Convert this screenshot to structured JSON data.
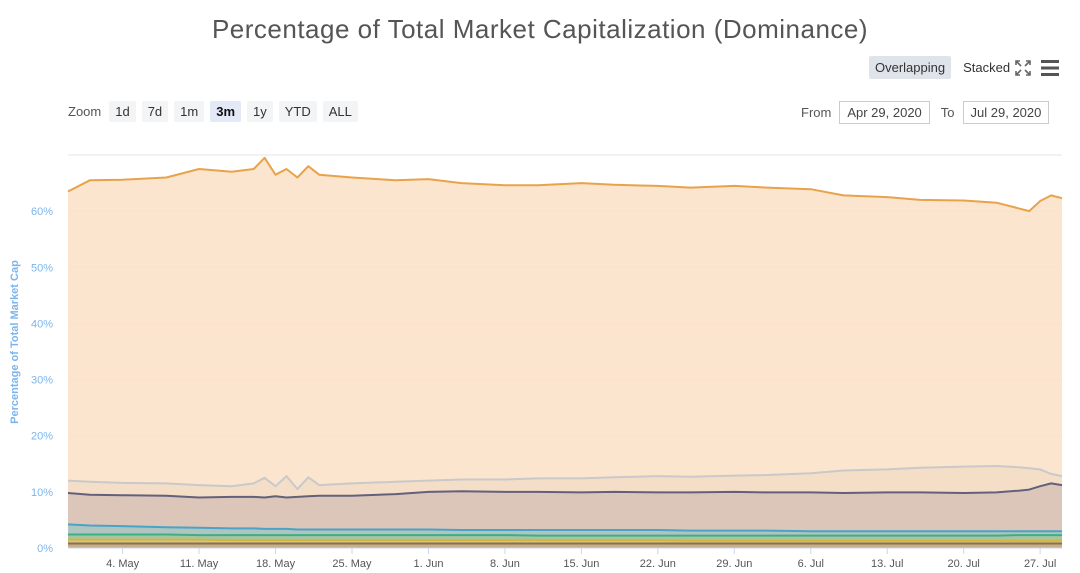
{
  "page": {
    "title": "Percentage of Total Market Capitalization (Dominance)"
  },
  "toolbar": {
    "overlapping_label": "Overlapping",
    "stacked_label": "Stacked",
    "active_view": "overlapping",
    "fullscreen_icon": "fullscreen-icon",
    "menu_icon": "hamburger-menu-icon"
  },
  "zoom": {
    "label": "Zoom",
    "buttons": [
      "1d",
      "7d",
      "1m",
      "3m",
      "1y",
      "YTD",
      "ALL"
    ],
    "active": "3m"
  },
  "range": {
    "from_label": "From",
    "from_value": "Apr 29, 2020",
    "to_label": "To",
    "to_value": "Jul 29, 2020"
  },
  "chart_data": {
    "type": "area",
    "title": "Percentage of Total Market Capitalization (Dominance)",
    "ylabel": "Percentage of Total Market Cap",
    "xlabel": "",
    "ylim": [
      0,
      70
    ],
    "yticks": [
      "0%",
      "10%",
      "20%",
      "30%",
      "40%",
      "50%",
      "60%"
    ],
    "x_tick_labels": [
      "4. May",
      "11. May",
      "18. May",
      "25. May",
      "1. Jun",
      "8. Jun",
      "15. Jun",
      "22. Jun",
      "29. Jun",
      "6. Jul",
      "13. Jul",
      "20. Jul",
      "27. Jul"
    ],
    "x": [
      "Apr 29",
      "May 1",
      "May 4",
      "May 8",
      "May 11",
      "May 14",
      "May 16",
      "May 17",
      "May 18",
      "May 19",
      "May 20",
      "May 21",
      "May 22",
      "May 25",
      "May 29",
      "Jun 1",
      "Jun 4",
      "Jun 8",
      "Jun 11",
      "Jun 15",
      "Jun 18",
      "Jun 22",
      "Jun 25",
      "Jun 29",
      "Jul 2",
      "Jul 6",
      "Jul 9",
      "Jul 13",
      "Jul 16",
      "Jul 20",
      "Jul 23",
      "Jul 25",
      "Jul 26",
      "Jul 27",
      "Jul 28",
      "Jul 29"
    ],
    "series": [
      {
        "color": "#e8a34a",
        "fill": "#fbe1c5",
        "values": [
          63.5,
          65.5,
          65.6,
          66.0,
          67.5,
          67.0,
          67.5,
          69.5,
          66.5,
          67.5,
          66.0,
          68.0,
          66.5,
          66.0,
          65.5,
          65.7,
          65.0,
          64.6,
          64.6,
          65.0,
          64.7,
          64.5,
          64.2,
          64.5,
          64.2,
          63.9,
          62.8,
          62.5,
          62.0,
          61.9,
          61.5,
          60.5,
          60.0,
          61.8,
          62.8,
          62.3
        ]
      },
      {
        "color": "#c9c9c9",
        "fill": "#f2ddc7",
        "values": [
          12.0,
          11.8,
          11.6,
          11.5,
          11.2,
          11.0,
          11.5,
          12.5,
          11.0,
          12.8,
          10.5,
          12.6,
          11.2,
          11.5,
          11.8,
          12.0,
          12.2,
          12.2,
          12.4,
          12.4,
          12.6,
          12.8,
          12.7,
          12.9,
          13.0,
          13.3,
          13.8,
          14.0,
          14.3,
          14.5,
          14.6,
          14.4,
          14.2,
          14.0,
          13.2,
          12.8
        ]
      },
      {
        "color": "#62607b",
        "fill": "#d7c2b7",
        "values": [
          9.8,
          9.5,
          9.4,
          9.3,
          9.0,
          9.1,
          9.1,
          9.0,
          9.2,
          9.0,
          9.1,
          9.2,
          9.3,
          9.3,
          9.6,
          10.0,
          10.1,
          10.0,
          10.0,
          9.9,
          10.0,
          9.9,
          9.9,
          10.0,
          9.9,
          9.9,
          9.8,
          9.9,
          9.9,
          9.8,
          9.9,
          10.2,
          10.4,
          11.0,
          11.5,
          11.2
        ]
      },
      {
        "color": "#4aa3c6",
        "fill": "#a7c4c0",
        "values": [
          4.2,
          4.0,
          3.9,
          3.7,
          3.6,
          3.5,
          3.5,
          3.4,
          3.4,
          3.4,
          3.3,
          3.3,
          3.3,
          3.3,
          3.3,
          3.3,
          3.2,
          3.2,
          3.2,
          3.2,
          3.2,
          3.2,
          3.1,
          3.1,
          3.1,
          3.0,
          3.0,
          3.0,
          3.0,
          3.0,
          3.0,
          3.0,
          3.0,
          3.0,
          3.0,
          3.0
        ]
      },
      {
        "color": "#3fae86",
        "fill": "#a7c49c",
        "values": [
          2.4,
          2.4,
          2.4,
          2.4,
          2.3,
          2.3,
          2.3,
          2.3,
          2.3,
          2.3,
          2.3,
          2.3,
          2.3,
          2.3,
          2.3,
          2.3,
          2.3,
          2.3,
          2.2,
          2.2,
          2.2,
          2.2,
          2.2,
          2.2,
          2.2,
          2.2,
          2.2,
          2.2,
          2.2,
          2.2,
          2.2,
          2.3,
          2.3,
          2.3,
          2.3,
          2.3
        ]
      },
      {
        "color": "#d4b63a",
        "fill": "#d8c48d",
        "values": [
          1.5,
          1.5,
          1.5,
          1.5,
          1.5,
          1.4,
          1.4,
          1.4,
          1.4,
          1.4,
          1.4,
          1.4,
          1.4,
          1.4,
          1.4,
          1.4,
          1.4,
          1.4,
          1.4,
          1.4,
          1.4,
          1.4,
          1.3,
          1.3,
          1.3,
          1.3,
          1.3,
          1.3,
          1.3,
          1.3,
          1.3,
          1.3,
          1.3,
          1.3,
          1.3,
          1.3
        ]
      },
      {
        "color": "#8e6e4e",
        "fill": "#c2a98c",
        "values": [
          0.8,
          0.8,
          0.8,
          0.8,
          0.8,
          0.8,
          0.8,
          0.8,
          0.8,
          0.8,
          0.8,
          0.8,
          0.8,
          0.8,
          0.8,
          0.8,
          0.8,
          0.8,
          0.8,
          0.8,
          0.8,
          0.8,
          0.8,
          0.8,
          0.8,
          0.8,
          0.8,
          0.8,
          0.8,
          0.8,
          0.8,
          0.8,
          0.8,
          0.8,
          0.8,
          0.8
        ]
      }
    ],
    "grid": true,
    "legend": "none"
  }
}
